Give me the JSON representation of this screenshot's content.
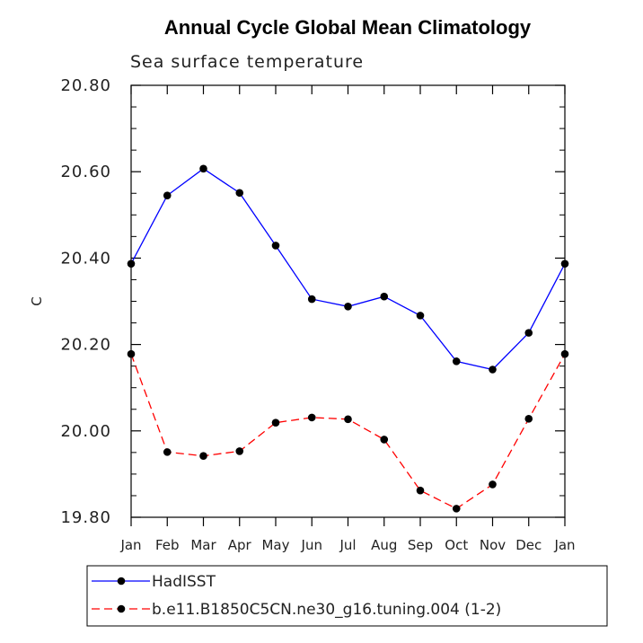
{
  "chart_data": {
    "type": "line",
    "title": "Annual Cycle Global Mean Climatology",
    "subtitle": "Sea surface temperature",
    "xlabel": "",
    "ylabel": "C",
    "categories": [
      "Jan",
      "Feb",
      "Mar",
      "Apr",
      "May",
      "Jun",
      "Jul",
      "Aug",
      "Sep",
      "Oct",
      "Nov",
      "Dec",
      "Jan"
    ],
    "ylim": [
      19.8,
      20.8
    ],
    "yticks": [
      19.8,
      20.0,
      20.2,
      20.4,
      20.6,
      20.8
    ],
    "ytick_labels": [
      "19.80",
      "20.00",
      "20.20",
      "20.40",
      "20.60",
      "20.80"
    ],
    "series": [
      {
        "name": "HadISST",
        "color": "#0000ff",
        "style": "solid",
        "values": [
          20.387,
          20.545,
          20.607,
          20.551,
          20.429,
          20.305,
          20.288,
          20.311,
          20.267,
          20.161,
          20.142,
          20.227,
          20.387
        ]
      },
      {
        "name": "b.e11.B1850C5CN.ne30_g16.tuning.004 (1-2)",
        "color": "#ff0000",
        "style": "dashed",
        "values": [
          20.178,
          19.951,
          19.942,
          19.953,
          20.019,
          20.031,
          20.027,
          19.98,
          19.862,
          19.82,
          19.876,
          20.028,
          20.178
        ]
      }
    ],
    "legend_position": "bottom"
  }
}
